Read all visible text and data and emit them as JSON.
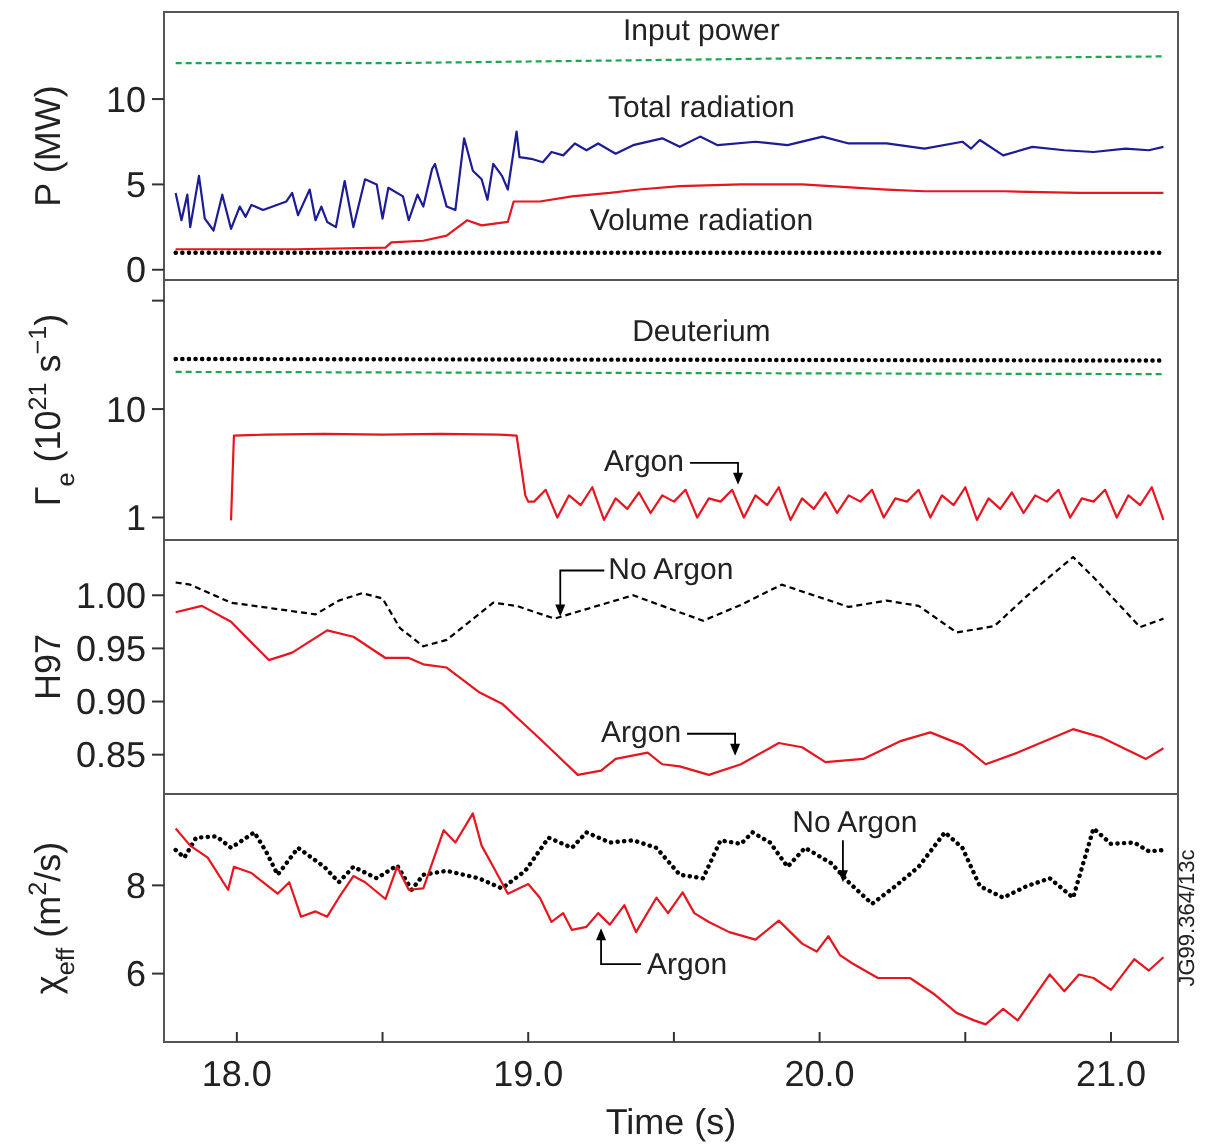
{
  "chart_data": [
    {
      "type": "line",
      "ylabel": "P (MW)",
      "xlim": [
        17.75,
        21.23
      ],
      "ylim": [
        -0.6,
        15.1
      ],
      "yticks": [
        0,
        5,
        10
      ],
      "tick_labels": "y",
      "series": [
        {
          "name": "Input power",
          "color": "#1aa84f",
          "line_style": "dashed",
          "x": [
            17.79,
            18.5,
            19.0,
            19.5,
            20.0,
            20.5,
            21.18
          ],
          "values": [
            12.1,
            12.1,
            12.2,
            12.3,
            12.4,
            12.4,
            12.5
          ]
        },
        {
          "name": "Total radiation",
          "color": "#1c1c96",
          "line_style": "solid",
          "x": [
            17.79,
            17.81,
            17.83,
            17.84,
            17.87,
            17.89,
            17.92,
            17.95,
            17.98,
            18.01,
            18.03,
            18.05,
            18.09,
            18.17,
            18.19,
            18.21,
            18.25,
            18.27,
            18.29,
            18.31,
            18.34,
            18.37,
            18.4,
            18.44,
            18.48,
            18.5,
            18.52,
            18.57,
            18.59,
            18.62,
            18.64,
            18.67,
            18.68,
            18.72,
            18.75,
            18.78,
            18.81,
            18.84,
            18.86,
            18.88,
            18.91,
            18.93,
            18.96,
            18.97,
            19.01,
            19.05,
            19.08,
            19.12,
            19.16,
            19.2,
            19.24,
            19.3,
            19.36,
            19.46,
            19.52,
            19.59,
            19.65,
            19.78,
            19.89,
            20.01,
            20.1,
            20.23,
            20.36,
            20.49,
            20.52,
            20.55,
            20.63,
            20.73,
            20.84,
            20.94,
            21.05,
            21.13,
            21.18
          ],
          "values": [
            4.5,
            2.9,
            4.4,
            2.5,
            5.5,
            3.0,
            2.3,
            4.4,
            2.4,
            3.7,
            3.1,
            3.8,
            3.5,
            4.0,
            4.5,
            3.2,
            4.7,
            2.9,
            3.7,
            2.8,
            2.5,
            5.2,
            2.5,
            5.3,
            5.0,
            3.0,
            4.8,
            4.3,
            2.9,
            4.4,
            3.7,
            5.9,
            6.2,
            3.7,
            3.5,
            7.7,
            5.8,
            5.3,
            4.1,
            6.2,
            5.5,
            4.7,
            8.1,
            6.6,
            6.5,
            6.3,
            6.9,
            6.7,
            7.4,
            7.0,
            7.4,
            6.8,
            7.3,
            7.7,
            7.2,
            7.8,
            7.3,
            7.5,
            7.3,
            7.8,
            7.4,
            7.4,
            7.1,
            7.5,
            7.1,
            7.6,
            6.7,
            7.2,
            7.0,
            6.9,
            7.1,
            7.0,
            7.2
          ]
        },
        {
          "name": "Volume radiation",
          "color": "#e8141e",
          "line_style": "solid",
          "x": [
            17.79,
            18.2,
            18.51,
            18.53,
            18.64,
            18.72,
            18.79,
            18.84,
            18.93,
            18.95,
            19.04,
            19.15,
            19.28,
            19.38,
            19.52,
            19.73,
            19.94,
            20.23,
            20.36,
            20.63,
            20.89,
            21.18
          ],
          "values": [
            1.2,
            1.2,
            1.3,
            1.6,
            1.7,
            2.0,
            2.9,
            2.6,
            2.8,
            4.0,
            4.0,
            4.3,
            4.5,
            4.7,
            4.9,
            5.0,
            5.0,
            4.7,
            4.6,
            4.6,
            4.5,
            4.5
          ]
        },
        {
          "color": "#000000",
          "line_style": "dotted",
          "x": [
            17.79,
            19.0,
            20.0,
            21.18
          ],
          "values": [
            1.0,
            1.0,
            1.0,
            1.0
          ]
        }
      ]
    },
    {
      "type": "line",
      "ylabel": "Γ$_{e}$ (10$^{21}$ s$^{−1}$)",
      "log": true,
      "xlim": [
        17.75,
        21.23
      ],
      "ylim": [
        0.62,
        155
      ],
      "yticks": [
        1,
        10,
        {
          "value": 100,
          "label": null
        }
      ],
      "tick_labels": "y",
      "annotations": [
        {
          "text": "Argon",
          "x": 19.72,
          "y": 2.0
        }
      ],
      "series": [
        {
          "name": "Deuterium",
          "color": "#000000",
          "line_style": "dotted",
          "x": [
            17.79,
            21.18
          ],
          "values": [
            29,
            28
          ]
        },
        {
          "color": "#1aa84f",
          "line_style": "dashed",
          "x": [
            17.79,
            21.18
          ],
          "values": [
            22,
            21
          ]
        },
        {
          "color": "#e8141e",
          "line_style": "solid",
          "x": [
            17.98,
            17.99,
            18.1,
            18.3,
            18.5,
            18.7,
            18.9,
            18.96,
            18.99,
            19.0,
            19.02,
            19.06,
            19.1,
            19.14,
            19.18,
            19.22,
            19.26,
            19.3,
            19.34,
            19.38,
            19.42,
            19.46,
            19.5,
            19.54,
            19.58,
            19.62,
            19.66,
            19.7,
            19.74,
            19.78,
            19.82,
            19.86,
            19.9,
            19.94,
            19.98,
            20.02,
            20.06,
            20.1,
            20.14,
            20.18,
            20.22,
            20.26,
            20.3,
            20.34,
            20.38,
            20.42,
            20.46,
            20.5,
            20.54,
            20.58,
            20.62,
            20.66,
            20.7,
            20.74,
            20.78,
            20.82,
            20.86,
            20.9,
            20.94,
            20.98,
            21.02,
            21.06,
            21.1,
            21.14,
            21.18
          ],
          "values": [
            0.94,
            5.7,
            5.8,
            5.9,
            5.8,
            5.9,
            5.8,
            5.7,
            1.6,
            1.4,
            1.4,
            1.8,
            1.0,
            1.6,
            1.3,
            1.9,
            0.95,
            1.5,
            1.2,
            1.7,
            1.1,
            1.6,
            1.4,
            1.8,
            1.0,
            1.5,
            1.4,
            1.8,
            1.0,
            1.6,
            1.3,
            1.9,
            0.95,
            1.5,
            1.2,
            1.7,
            1.1,
            1.6,
            1.4,
            1.8,
            1.0,
            1.5,
            1.4,
            1.8,
            1.0,
            1.6,
            1.3,
            1.9,
            0.95,
            1.5,
            1.2,
            1.7,
            1.1,
            1.6,
            1.4,
            1.8,
            1.0,
            1.5,
            1.4,
            1.8,
            1.0,
            1.6,
            1.3,
            1.9,
            0.95
          ]
        }
      ]
    },
    {
      "type": "line",
      "ylabel": "H97",
      "xlim": [
        17.75,
        21.23
      ],
      "ylim": [
        0.813,
        1.052
      ],
      "yticks": [
        {
          "value": 0.85,
          "label": "0.85"
        },
        {
          "value": 0.9,
          "label": "0.90"
        },
        {
          "value": 0.95,
          "label": "0.95"
        },
        {
          "value": 1.0,
          "label": "1.00"
        }
      ],
      "tick_labels": "y",
      "annotations": [
        {
          "text": "No Argon",
          "x": 19.11,
          "y": 0.98
        },
        {
          "text": "Argon",
          "x": 19.71,
          "y": 0.849
        }
      ],
      "series": [
        {
          "color": "#000000",
          "line_style": "dashed",
          "x": [
            17.79,
            17.84,
            17.98,
            18.06,
            18.27,
            18.35,
            18.43,
            18.5,
            18.56,
            18.64,
            18.72,
            18.88,
            18.96,
            19.09,
            19.2,
            19.36,
            19.46,
            19.6,
            19.73,
            19.87,
            19.99,
            20.1,
            20.23,
            20.34,
            20.47,
            20.6,
            20.71,
            20.87,
            20.94,
            21.1,
            21.18
          ],
          "values": [
            1.012,
            1.01,
            0.993,
            0.99,
            0.982,
            0.995,
            1.002,
            0.997,
            0.969,
            0.952,
            0.958,
            0.993,
            0.99,
            0.978,
            0.987,
            1.0,
            0.99,
            0.976,
            0.991,
            1.01,
            0.999,
            0.989,
            0.995,
            0.99,
            0.965,
            0.971,
            0.999,
            1.036,
            1.017,
            0.97,
            0.978
          ]
        },
        {
          "color": "#e8141e",
          "line_style": "solid",
          "x": [
            17.79,
            17.88,
            17.98,
            18.11,
            18.19,
            18.31,
            18.4,
            18.51,
            18.59,
            18.64,
            18.72,
            18.83,
            18.91,
            19.04,
            19.17,
            19.25,
            19.3,
            19.41,
            19.46,
            19.52,
            19.62,
            19.73,
            19.86,
            19.94,
            20.02,
            20.15,
            20.28,
            20.38,
            20.49,
            20.57,
            20.68,
            20.87,
            20.97,
            21.12,
            21.18
          ],
          "values": [
            0.984,
            0.99,
            0.975,
            0.939,
            0.946,
            0.967,
            0.961,
            0.941,
            0.941,
            0.935,
            0.932,
            0.909,
            0.898,
            0.865,
            0.831,
            0.835,
            0.846,
            0.852,
            0.841,
            0.839,
            0.831,
            0.841,
            0.861,
            0.857,
            0.843,
            0.846,
            0.863,
            0.871,
            0.859,
            0.841,
            0.852,
            0.874,
            0.866,
            0.846,
            0.856
          ]
        }
      ]
    },
    {
      "type": "line",
      "ylabel": "χ$_{eff}$ (m$^{2}$/s)",
      "xlabel": "Time (s)",
      "xlim": [
        17.75,
        21.23
      ],
      "ylim": [
        4.45,
        10.07
      ],
      "yticks": [
        6,
        8
      ],
      "xticks": [
        {
          "value": 18,
          "label": "18.0"
        },
        {
          "value": 18.5,
          "label": null
        },
        {
          "value": 19,
          "label": "19.0"
        },
        {
          "value": 19.5,
          "label": null
        },
        {
          "value": 20,
          "label": "20.0"
        },
        {
          "value": 20.5,
          "label": null
        },
        {
          "value": 21,
          "label": "21.0"
        }
      ],
      "annotations": [
        {
          "text": "No Argon",
          "x": 20.08,
          "y": 8.07
        },
        {
          "text": "Argon",
          "x": 19.25,
          "y": 7.03
        },
        "JG99.364/13c"
      ],
      "series": [
        {
          "color": "#000000",
          "line_style": "dotted",
          "x": [
            17.79,
            17.82,
            17.86,
            17.93,
            17.98,
            18.06,
            18.1,
            18.14,
            18.21,
            18.3,
            18.35,
            18.4,
            18.48,
            18.55,
            18.6,
            18.64,
            18.72,
            18.83,
            18.91,
            18.99,
            19.07,
            19.15,
            19.2,
            19.28,
            19.36,
            19.44,
            19.52,
            19.6,
            19.66,
            19.73,
            19.77,
            19.83,
            19.89,
            19.95,
            20.04,
            20.1,
            20.18,
            20.26,
            20.34,
            20.43,
            20.49,
            20.55,
            20.63,
            20.71,
            20.79,
            20.87,
            20.94,
            21.0,
            21.08,
            21.13,
            21.18
          ],
          "values": [
            8.8,
            8.63,
            9.08,
            9.11,
            8.85,
            9.2,
            8.77,
            8.24,
            8.85,
            8.42,
            8.07,
            8.42,
            8.16,
            8.45,
            7.9,
            8.24,
            8.33,
            8.16,
            7.93,
            8.33,
            9.08,
            8.85,
            9.2,
            8.97,
            9.02,
            8.85,
            8.24,
            8.16,
            9.02,
            8.94,
            9.2,
            8.97,
            8.42,
            8.85,
            8.5,
            8.07,
            7.58,
            7.98,
            8.42,
            9.2,
            8.85,
            7.98,
            7.72,
            7.98,
            8.16,
            7.72,
            9.29,
            8.94,
            8.97,
            8.77,
            8.8
          ]
        },
        {
          "color": "#e8141e",
          "line_style": "solid",
          "x": [
            17.79,
            17.84,
            17.9,
            17.97,
            17.99,
            18.05,
            18.14,
            18.18,
            18.22,
            18.27,
            18.31,
            18.35,
            18.4,
            18.44,
            18.51,
            18.55,
            18.59,
            18.64,
            18.67,
            18.71,
            18.75,
            18.81,
            18.84,
            18.88,
            18.93,
            19.0,
            19.04,
            19.08,
            19.12,
            19.15,
            19.2,
            19.24,
            19.28,
            19.33,
            19.37,
            19.44,
            19.48,
            19.53,
            19.57,
            19.62,
            19.69,
            19.78,
            19.86,
            19.94,
            19.99,
            20.03,
            20.07,
            20.11,
            20.2,
            20.31,
            20.39,
            20.47,
            20.53,
            20.57,
            20.63,
            20.68,
            20.79,
            20.84,
            20.89,
            20.94,
            21.0,
            21.08,
            21.13,
            21.18
          ],
          "values": [
            9.29,
            8.9,
            8.63,
            7.9,
            8.42,
            8.28,
            7.81,
            8.07,
            7.29,
            7.41,
            7.29,
            7.72,
            8.21,
            8.07,
            7.69,
            8.42,
            7.9,
            7.93,
            8.5,
            9.25,
            8.97,
            9.63,
            8.9,
            8.42,
            7.81,
            8.03,
            7.72,
            7.17,
            7.37,
            6.99,
            7.06,
            7.37,
            7.11,
            7.55,
            6.94,
            7.72,
            7.37,
            7.84,
            7.37,
            7.17,
            6.94,
            6.77,
            7.2,
            6.68,
            6.5,
            6.85,
            6.42,
            6.24,
            5.9,
            5.9,
            5.55,
            5.11,
            4.94,
            4.85,
            5.2,
            4.94,
            5.98,
            5.6,
            5.98,
            5.9,
            5.63,
            6.33,
            6.07,
            6.37
          ]
        }
      ]
    }
  ]
}
